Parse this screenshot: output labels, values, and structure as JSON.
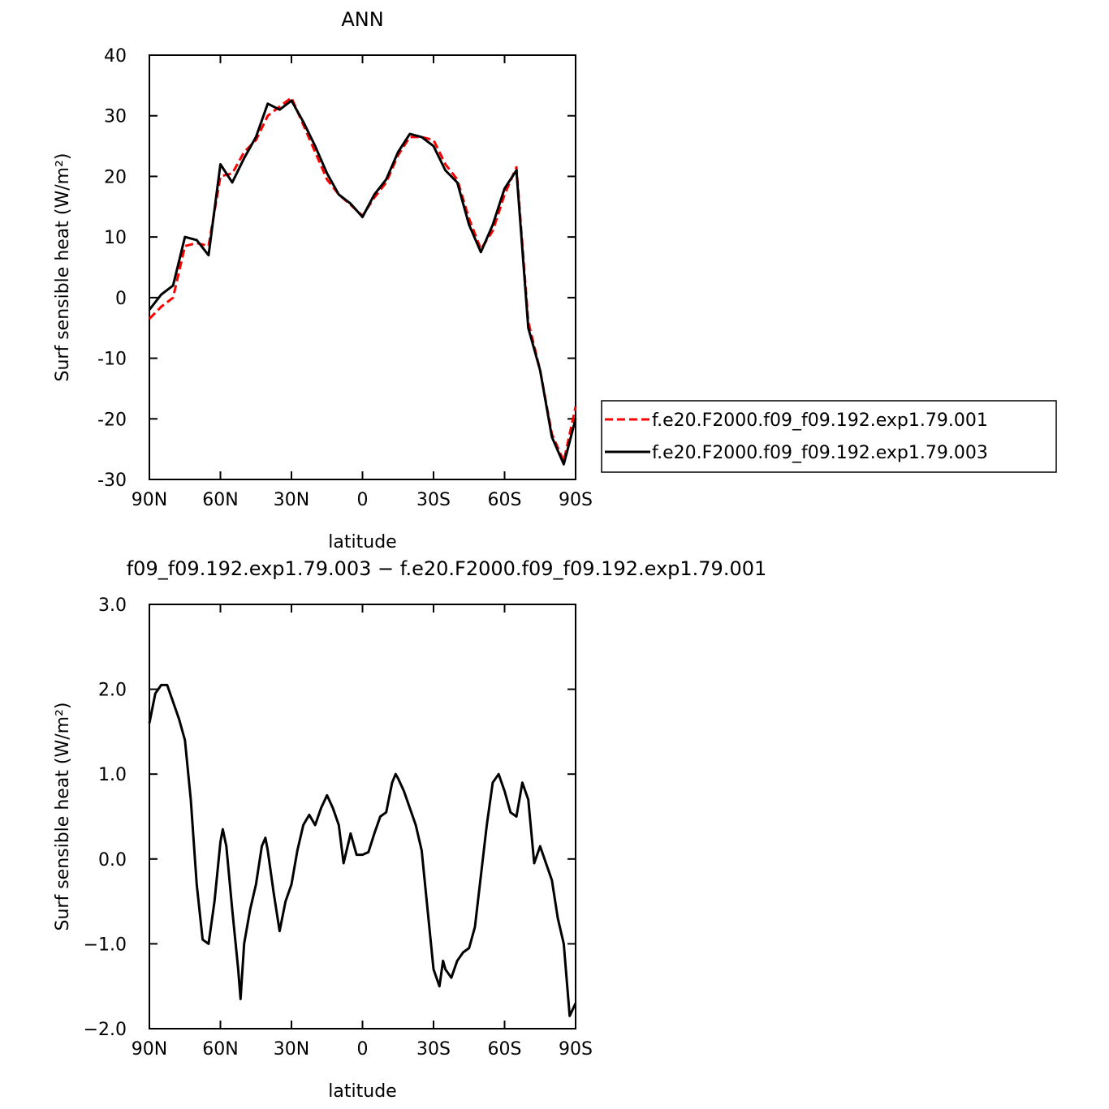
{
  "chart_data": [
    {
      "type": "line",
      "title": "ANN",
      "xlabel": "latitude",
      "ylabel": "Surf sensible heat (W/m²)",
      "x": [
        90,
        85,
        80,
        75,
        70,
        65,
        60,
        55,
        50,
        45,
        40,
        35,
        30,
        25,
        20,
        15,
        10,
        5,
        0,
        -5,
        -10,
        -15,
        -20,
        -25,
        -30,
        -35,
        -40,
        -45,
        -50,
        -55,
        -60,
        -65,
        -70,
        -75,
        -80,
        -85,
        -90
      ],
      "xlim": [
        90,
        -90
      ],
      "xticks": [
        {
          "value": 90,
          "label": "90N"
        },
        {
          "value": 60,
          "label": "60N"
        },
        {
          "value": 30,
          "label": "30N"
        },
        0,
        {
          "value": -30,
          "label": "30S"
        },
        {
          "value": -60,
          "label": "60S"
        },
        {
          "value": -90,
          "label": "90S"
        }
      ],
      "ylim": [
        -30,
        40
      ],
      "yticks": [
        -30,
        -20,
        -10,
        0,
        10,
        20,
        30,
        40
      ],
      "legend": "right",
      "series": [
        {
          "name": "f.e20.F2000.f09_f09.192.exp1.79.001",
          "color": "#ff0000",
          "line_style": "dashed",
          "values": [
            -3.5,
            -1.5,
            0,
            8.5,
            9,
            8.5,
            20,
            20.5,
            24,
            26,
            30,
            31.5,
            33,
            28.5,
            24,
            19.5,
            17,
            15.3,
            13.5,
            16.5,
            19,
            23.5,
            26.5,
            26.5,
            26,
            22,
            19.5,
            13,
            8,
            11,
            17,
            21.5,
            -4,
            -12,
            -22.5,
            -27,
            -18
          ]
        },
        {
          "name": "f.e20.F2000.f09_f09.192.exp1.79.003",
          "color": "#000000",
          "line_style": "solid",
          "values": [
            -2,
            0.5,
            2,
            10,
            9.5,
            7,
            22,
            19,
            23,
            26.5,
            32,
            31,
            32.5,
            29,
            25,
            20.5,
            17,
            15.5,
            13.3,
            17,
            19.5,
            24,
            27,
            26.5,
            25,
            21,
            19,
            12,
            7.5,
            12,
            18,
            21,
            -5,
            -12,
            -23,
            -27.5,
            -20
          ]
        }
      ]
    },
    {
      "type": "line",
      "title": "f09_f09.192.exp1.79.003 − f.e20.F2000.f09_f09.192.exp1.79.001",
      "xlabel": "latitude",
      "ylabel": "Surf sensible heat (W/m²)",
      "x": [
        90,
        87.5,
        85,
        82.5,
        80,
        77.5,
        75,
        72.5,
        70,
        67.5,
        65,
        62.5,
        60,
        59,
        57.5,
        55,
        52.5,
        51.5,
        50,
        47.5,
        45,
        42.5,
        41,
        40,
        37.5,
        35,
        32.5,
        30,
        27.5,
        25,
        22.5,
        20,
        17.5,
        15,
        12.5,
        10,
        8,
        5,
        2.5,
        0,
        -2.5,
        -5,
        -7.5,
        -10,
        -12.5,
        -14,
        -15,
        -17.5,
        -20,
        -22.5,
        -25,
        -27.5,
        -30,
        -32.5,
        -34,
        -35,
        -37.5,
        -40,
        -42.5,
        -45,
        -47.5,
        -50,
        -52.5,
        -55,
        -57.5,
        -60,
        -62.5,
        -65,
        -67.5,
        -70,
        -72.5,
        -75,
        -77.5,
        -80,
        -82.5,
        -85,
        -87.5,
        -90
      ],
      "xlim": [
        90,
        -90
      ],
      "xticks": [
        {
          "value": 90,
          "label": "90N"
        },
        {
          "value": 60,
          "label": "60N"
        },
        {
          "value": 30,
          "label": "30N"
        },
        0,
        {
          "value": -30,
          "label": "30S"
        },
        {
          "value": -60,
          "label": "60S"
        },
        {
          "value": -90,
          "label": "90S"
        }
      ],
      "ylim": [
        -2,
        3
      ],
      "yticks": [
        {
          "value": -2,
          "label": "−2.0"
        },
        {
          "value": -1,
          "label": "−1.0"
        },
        {
          "value": 0,
          "label": "0.0"
        },
        {
          "value": 1,
          "label": "1.0"
        },
        {
          "value": 2,
          "label": "2.0"
        },
        {
          "value": 3,
          "label": "3.0"
        }
      ],
      "series": [
        {
          "color": "#000000",
          "line_style": "solid",
          "values": [
            1.6,
            1.95,
            2.05,
            2.05,
            1.85,
            1.65,
            1.4,
            0.7,
            -0.3,
            -0.95,
            -1.0,
            -0.5,
            0.2,
            0.35,
            0.15,
            -0.6,
            -1.3,
            -1.65,
            -1.0,
            -0.6,
            -0.3,
            0.15,
            0.25,
            0.1,
            -0.4,
            -0.85,
            -0.5,
            -0.3,
            0.1,
            0.4,
            0.52,
            0.4,
            0.6,
            0.75,
            0.6,
            0.4,
            -0.05,
            0.3,
            0.05,
            0.05,
            0.08,
            0.3,
            0.5,
            0.55,
            0.9,
            1.0,
            0.95,
            0.8,
            0.6,
            0.4,
            0.1,
            -0.6,
            -1.3,
            -1.5,
            -1.2,
            -1.3,
            -1.4,
            -1.2,
            -1.1,
            -1.05,
            -0.8,
            -0.2,
            0.4,
            0.9,
            1.0,
            0.8,
            0.55,
            0.5,
            0.9,
            0.7,
            -0.05,
            0.15,
            -0.05,
            -0.25,
            -0.7,
            -1.0,
            -1.85,
            -1.7
          ]
        }
      ]
    }
  ]
}
